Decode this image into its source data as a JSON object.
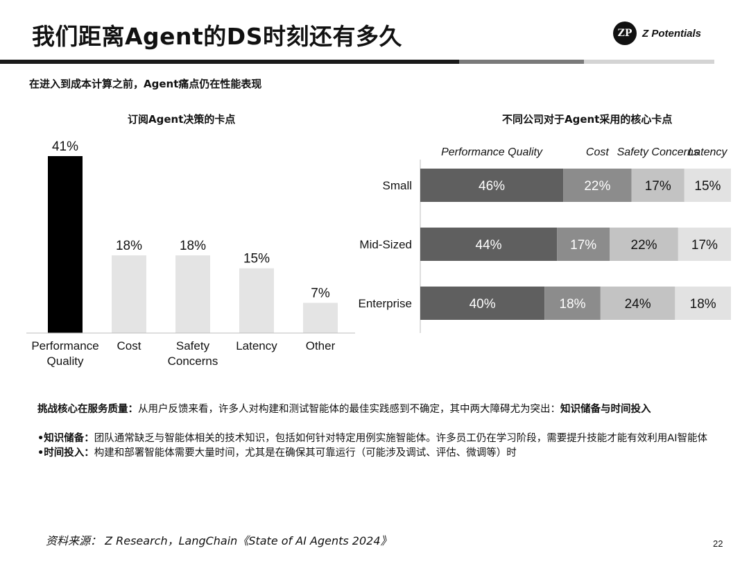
{
  "slide": {
    "title": "我们距离Agent的DS时刻还有多久",
    "brand": {
      "mark": "ZP",
      "name": "Z Potentials"
    },
    "subtitle": "在进入到成本计算之前，Agent痛点仍在性能表现",
    "page_number": "22",
    "source": "资料来源： Z Research，LangChain《State of AI Agents 2024》",
    "colors": {
      "black": "#000000",
      "dark": "#5f5f5f",
      "mid": "#8c8c8c",
      "light": "#c3c3c3",
      "lightest": "#e2e2e2"
    }
  },
  "notes": {
    "lead_label": "挑战核心在服务质量：",
    "lead_text": "从用户反馈来看，许多人对构建和测试智能体的最佳实践感到不确定，其中两大障碍尤为突出：",
    "lead_emphasis": "知识储备与时间投入",
    "bullet1_label": "•知识储备：",
    "bullet1_text": "团队通常缺乏与智能体相关的技术知识，包括如何针对特定用例实施智能体。许多员工仍在学习阶段，需要提升技能才能有效利用AI智能体",
    "bullet2_label": "•时间投入：",
    "bullet2_text": "构建和部署智能体需要大量时间，尤其是在确保其可靠运行（可能涉及调试、评估、微调等）时"
  },
  "chart_data": [
    {
      "type": "bar",
      "title": "订阅Agent决策的卡点",
      "categories": [
        "Performance Quality",
        "Cost",
        "Safety Concerns",
        "Latency",
        "Other"
      ],
      "values": [
        41,
        18,
        18,
        15,
        7
      ],
      "value_labels": [
        "41%",
        "18%",
        "18%",
        "15%",
        "7%"
      ],
      "bar_colors": [
        "#000000",
        "#e4e4e4",
        "#e4e4e4",
        "#e4e4e4",
        "#e4e4e4"
      ],
      "ylim": [
        0,
        41
      ],
      "grid": false,
      "xlabel": "",
      "ylabel": ""
    },
    {
      "type": "bar",
      "orientation": "horizontal",
      "stacked": true,
      "title": "不同公司对于Agent采用的核心卡点",
      "categories": [
        "Small",
        "Mid-Sized",
        "Enterprise"
      ],
      "legend_position": "top",
      "series": [
        {
          "name": "Performance Quality",
          "values": [
            46,
            44,
            40
          ],
          "labels": [
            "46%",
            "44%",
            "40%"
          ],
          "color": "#5f5f5f"
        },
        {
          "name": "Cost",
          "values": [
            22,
            17,
            18
          ],
          "labels": [
            "22%",
            "17%",
            "18%"
          ],
          "color": "#8c8c8c"
        },
        {
          "name": "Safety Concerns",
          "values": [
            17,
            22,
            24
          ],
          "labels": [
            "17%",
            "22%",
            "24%"
          ],
          "color": "#c3c3c3"
        },
        {
          "name": "Latency",
          "values": [
            15,
            17,
            18
          ],
          "labels": [
            "15%",
            "17%",
            "18%"
          ],
          "color": "#e2e2e2"
        }
      ],
      "xlim": [
        0,
        100
      ],
      "grid": false
    }
  ]
}
